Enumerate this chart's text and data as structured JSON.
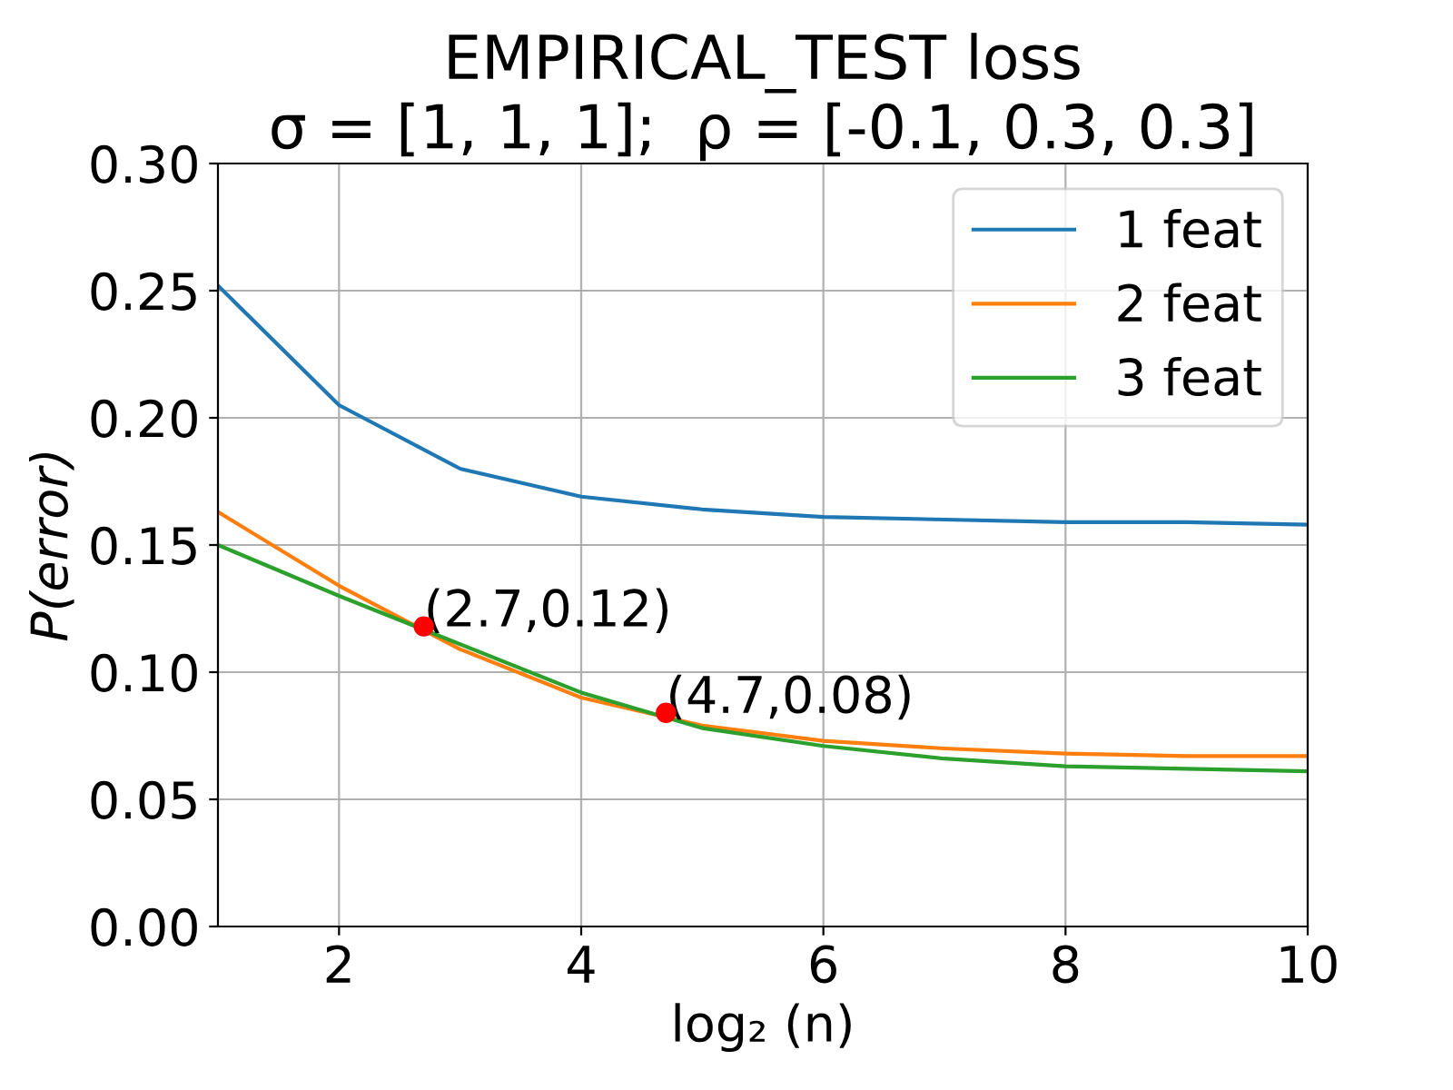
{
  "chart_data": {
    "type": "line",
    "title": "EMPIRICAL_TEST loss\nσ = [1, 1, 1];  ρ = [-0.1, 0.3, 0.3]",
    "xlabel": "log₂ (n)",
    "ylabel": "P(error)",
    "x": [
      1,
      2,
      3,
      4,
      5,
      6,
      7,
      8,
      9,
      10
    ],
    "series": [
      {
        "name": "1 feat",
        "color": "#1f77b4",
        "values": [
          0.252,
          0.205,
          0.18,
          0.169,
          0.164,
          0.161,
          0.16,
          0.159,
          0.159,
          0.158
        ]
      },
      {
        "name": "2 feat",
        "color": "#ff7f0e",
        "values": [
          0.163,
          0.134,
          0.109,
          0.09,
          0.079,
          0.073,
          0.07,
          0.068,
          0.067,
          0.067
        ]
      },
      {
        "name": "3 feat",
        "color": "#2ca02c",
        "values": [
          0.15,
          0.13,
          0.111,
          0.092,
          0.078,
          0.071,
          0.066,
          0.063,
          0.062,
          0.061
        ]
      },
      {
        "type": "scatter",
        "color": "#ff0000",
        "x": [
          2.7,
          4.7
        ],
        "values": [
          0.118,
          0.084
        ],
        "marker": "circle"
      }
    ],
    "annotations": [
      {
        "text": "(2.7,0.12)",
        "x": 2.7,
        "y": 0.118
      },
      {
        "text": "(4.7,0.08)",
        "x": 4.7,
        "y": 0.084
      }
    ],
    "xlim": [
      1,
      10
    ],
    "xticks": [
      2,
      4,
      6,
      8,
      10
    ],
    "ylim": [
      0,
      0.3
    ],
    "yticks": [
      {
        "value": 0,
        "label": "0.00"
      },
      {
        "value": 0.05,
        "label": "0.05"
      },
      {
        "value": 0.1,
        "label": "0.10"
      },
      {
        "value": 0.15,
        "label": "0.15"
      },
      {
        "value": 0.2,
        "label": "0.20"
      },
      {
        "value": 0.25,
        "label": "0.25"
      },
      {
        "value": 0.3,
        "label": "0.30"
      }
    ],
    "grid": true,
    "legend": "top right"
  }
}
